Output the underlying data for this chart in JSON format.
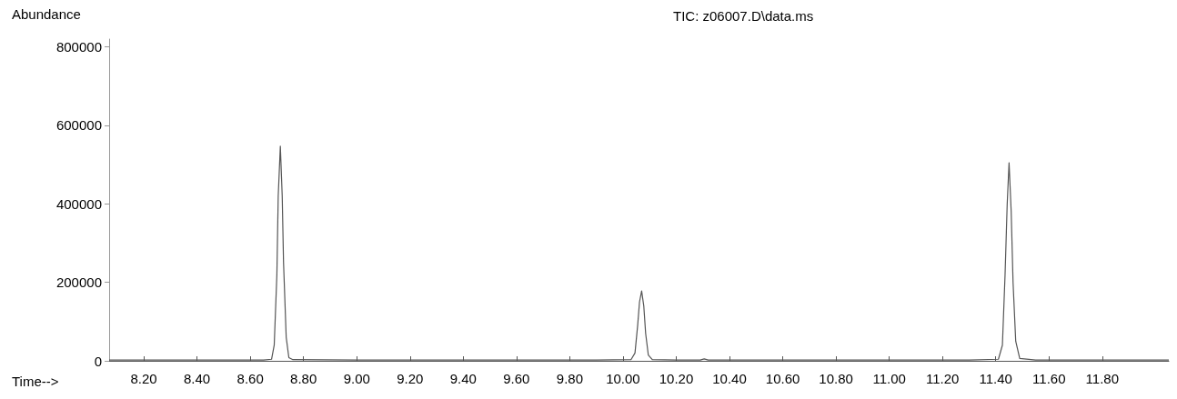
{
  "chart_data": {
    "type": "line",
    "title": "TIC: z06007.D\\data.ms",
    "xlabel": "Time-->",
    "ylabel": "Abundance",
    "x": [
      8.07,
      8.3,
      8.5,
      8.65,
      8.68,
      8.69,
      8.7,
      8.705,
      8.713,
      8.72,
      8.725,
      8.735,
      8.745,
      8.76,
      9.0,
      9.5,
      9.9,
      10.03,
      10.045,
      10.055,
      10.062,
      10.07,
      10.078,
      10.085,
      10.095,
      10.11,
      10.2,
      10.29,
      10.305,
      10.32,
      10.6,
      11.0,
      11.3,
      11.41,
      11.425,
      11.435,
      11.443,
      11.45,
      11.458,
      11.465,
      11.475,
      11.49,
      11.55,
      11.8,
      12.05
    ],
    "series": [
      {
        "color": "#555555",
        "values": [
          2000,
          2000,
          2000,
          2000,
          4000,
          40000,
          220000,
          420000,
          547000,
          420000,
          250000,
          60000,
          8000,
          3000,
          2000,
          2000,
          2000,
          3000,
          20000,
          90000,
          150000,
          178000,
          140000,
          70000,
          15000,
          3000,
          2000,
          2000,
          5000,
          2000,
          2000,
          2000,
          2000,
          4000,
          40000,
          220000,
          400000,
          505000,
          380000,
          200000,
          50000,
          6000,
          2000,
          2000,
          2000
        ]
      }
    ],
    "xlim": [
      8.07,
      12.05
    ],
    "ylim": [
      0,
      820000
    ],
    "xticks": [
      {
        "value": 8.2,
        "label": "8.20"
      },
      {
        "value": 8.4,
        "label": "8.40"
      },
      {
        "value": 8.6,
        "label": "8.60"
      },
      {
        "value": 8.8,
        "label": "8.80"
      },
      {
        "value": 9.0,
        "label": "9.00"
      },
      {
        "value": 9.2,
        "label": "9.20"
      },
      {
        "value": 9.4,
        "label": "9.40"
      },
      {
        "value": 9.6,
        "label": "9.60"
      },
      {
        "value": 9.8,
        "label": "9.80"
      },
      {
        "value": 10.0,
        "label": "10.00"
      },
      {
        "value": 10.2,
        "label": "10.20"
      },
      {
        "value": 10.4,
        "label": "10.40"
      },
      {
        "value": 10.6,
        "label": "10.60"
      },
      {
        "value": 10.8,
        "label": "10.80"
      },
      {
        "value": 11.0,
        "label": "11.00"
      },
      {
        "value": 11.2,
        "label": "11.20"
      },
      {
        "value": 11.4,
        "label": "11.40"
      },
      {
        "value": 11.6,
        "label": "11.60"
      },
      {
        "value": 11.8,
        "label": "11.80"
      }
    ],
    "yticks": [
      0,
      200000,
      400000,
      600000,
      800000
    ],
    "grid": false,
    "marker": "none",
    "line_style": "solid"
  }
}
